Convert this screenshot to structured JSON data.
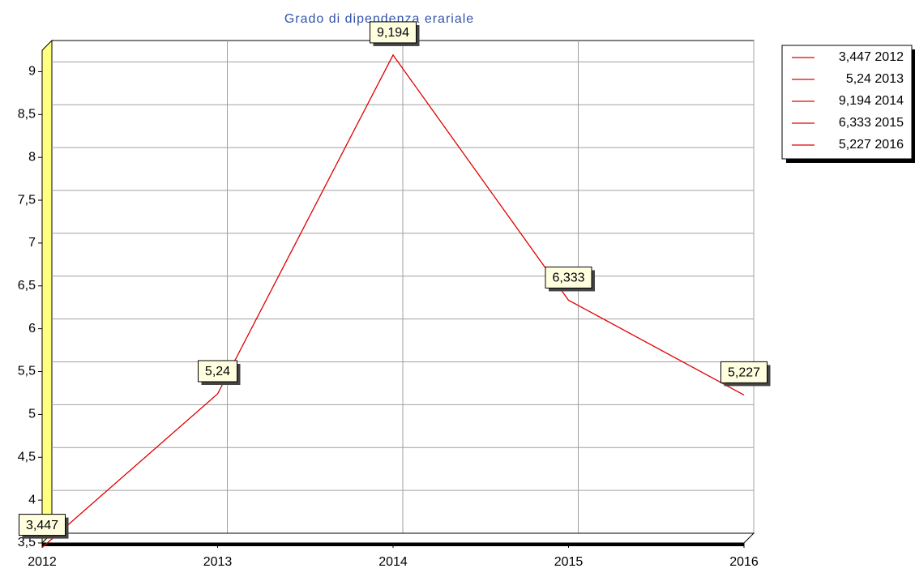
{
  "chart_data": {
    "type": "line",
    "title": "Grado di dipendenza erariale",
    "categories": [
      "2012",
      "2013",
      "2014",
      "2015",
      "2016"
    ],
    "series": [
      {
        "name": "Grado di dipendenza erariale",
        "color": "#e00000",
        "values": [
          3.447,
          5.24,
          9.194,
          6.333,
          5.227
        ],
        "value_labels": [
          "3,447",
          "5,24",
          "9,194",
          "6,333",
          "5,227"
        ]
      }
    ],
    "ylim": [
      3.5,
      9.25
    ],
    "yticks": [
      {
        "value": 3.5,
        "label": "3,5"
      },
      4,
      {
        "value": 4.5,
        "label": "4,5"
      },
      5,
      {
        "value": 5.5,
        "label": "5,5"
      },
      6,
      {
        "value": 6.5,
        "label": "6,5"
      },
      7,
      {
        "value": 7.5,
        "label": "7,5"
      },
      8,
      {
        "value": 8.5,
        "label": "8,5"
      },
      9
    ],
    "grid": true,
    "legend": "right"
  }
}
